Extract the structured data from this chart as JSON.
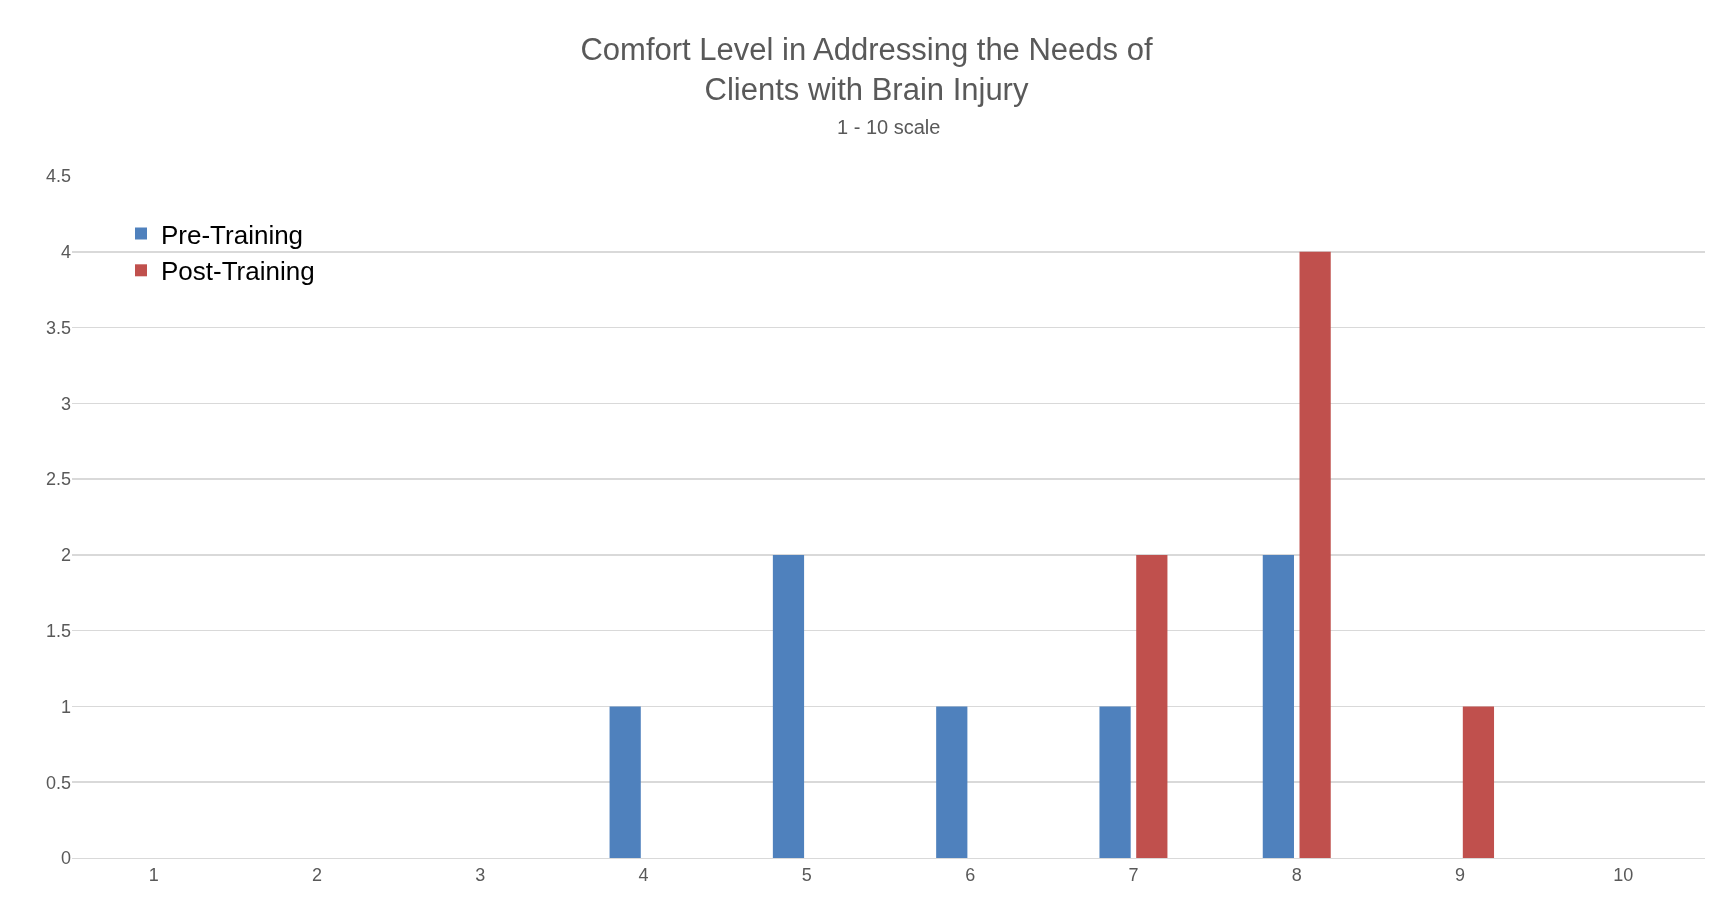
{
  "chart_data": {
    "type": "bar",
    "title": "Comfort Level in Addressing the Needs of\nClients with Brain Injury",
    "subtitle": "1 - 10 scale",
    "categories": [
      "1",
      "2",
      "3",
      "4",
      "5",
      "6",
      "7",
      "8",
      "9",
      "10"
    ],
    "series": [
      {
        "name": "Pre-Training",
        "color": "#4f81bd",
        "values": [
          0,
          0,
          0,
          1,
          2,
          1,
          1,
          2,
          0,
          0
        ]
      },
      {
        "name": "Post-Training",
        "color": "#c0504d",
        "values": [
          0,
          0,
          0,
          0,
          0,
          0,
          2,
          4,
          1,
          0
        ]
      }
    ],
    "ylim": [
      0,
      4.5
    ],
    "yticks": [
      0,
      0.5,
      1,
      1.5,
      2,
      2.5,
      3,
      3.5,
      4,
      4.5
    ],
    "grid": "y",
    "legend": "top left"
  }
}
